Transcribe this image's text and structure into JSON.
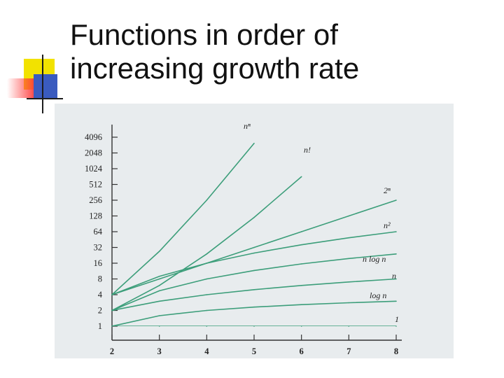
{
  "slide": {
    "title_line1": "Functions in order of",
    "title_line2": "increasing growth rate"
  },
  "colors": {
    "curve": "#3c9e7a",
    "axis": "#333333",
    "text": "#222222",
    "panel": "#e8ecee",
    "accent_yellow": "#f2e200",
    "accent_red": "#ff3b3b",
    "accent_blue": "#3a5bbf"
  },
  "chart_data": {
    "type": "line",
    "title": "",
    "xlabel": "",
    "ylabel": "",
    "y_scale": "log2",
    "xlim": [
      2,
      8
    ],
    "ylim": [
      1,
      4096
    ],
    "grid": false,
    "x_ticks": [
      2,
      3,
      4,
      5,
      6,
      7,
      8
    ],
    "y_ticks": [
      1,
      2,
      4,
      8,
      16,
      32,
      64,
      128,
      256,
      512,
      1024,
      2048,
      4096
    ],
    "series": [
      {
        "name": "n^n",
        "x": [
          2,
          3,
          4,
          5
        ],
        "y": [
          4,
          27,
          256,
          3125
        ],
        "label": "nⁿ"
      },
      {
        "name": "n!",
        "x": [
          2,
          3,
          4,
          5,
          6
        ],
        "y": [
          2,
          6,
          24,
          120,
          720
        ],
        "label": "n!"
      },
      {
        "name": "2^n",
        "x": [
          2,
          3,
          4,
          5,
          6,
          7,
          8
        ],
        "y": [
          4,
          8,
          16,
          32,
          64,
          128,
          256
        ],
        "label": "2ⁿ"
      },
      {
        "name": "n^2",
        "x": [
          2,
          3,
          4,
          5,
          6,
          7,
          8
        ],
        "y": [
          4,
          9,
          16,
          25,
          36,
          49,
          64
        ],
        "label": "n²"
      },
      {
        "name": "n log n",
        "x": [
          2,
          3,
          4,
          5,
          6,
          7,
          8
        ],
        "y": [
          2,
          4.75,
          8,
          11.61,
          15.51,
          19.65,
          24
        ],
        "label": "n log n"
      },
      {
        "name": "n",
        "x": [
          2,
          3,
          4,
          5,
          6,
          7,
          8
        ],
        "y": [
          2,
          3,
          4,
          5,
          6,
          7,
          8
        ],
        "label": "n"
      },
      {
        "name": "log n",
        "x": [
          2,
          3,
          4,
          5,
          6,
          7,
          8
        ],
        "y": [
          1,
          1.585,
          2,
          2.32,
          2.585,
          2.807,
          3
        ],
        "label": "log n"
      },
      {
        "name": "1",
        "x": [
          2,
          3,
          4,
          5,
          6,
          7,
          8
        ],
        "y": [
          1,
          1,
          1,
          1,
          1,
          1,
          1
        ],
        "label": "1"
      }
    ]
  }
}
